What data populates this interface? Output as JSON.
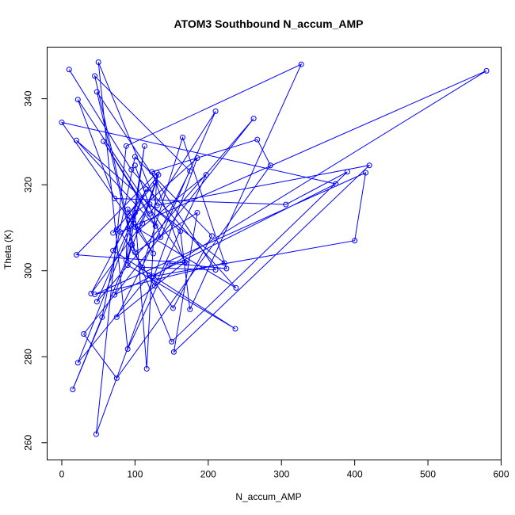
{
  "chart_data": {
    "type": "line",
    "title": "ATOM3 Southbound N_accum_AMP",
    "xlabel": "N_accum_AMP",
    "ylabel": "Theta (K)",
    "xlim": [
      -20,
      600
    ],
    "ylim": [
      256,
      352
    ],
    "xticks": [
      0,
      100,
      200,
      300,
      400,
      500,
      600
    ],
    "yticks": [
      260,
      280,
      300,
      320,
      340
    ],
    "grid": false,
    "marker": "open-circle",
    "color": "#0000ff",
    "points": [
      [
        10,
        346.8
      ],
      [
        95,
        323.5
      ],
      [
        238,
        296
      ],
      [
        100,
        310.2
      ],
      [
        120,
        315.5
      ],
      [
        222,
        301.8
      ],
      [
        45,
        294.5
      ],
      [
        415,
        322.8
      ],
      [
        400,
        307
      ],
      [
        125,
        298.7
      ],
      [
        580,
        346.5
      ],
      [
        80,
        309
      ],
      [
        127,
        296.5
      ],
      [
        197,
        322.3
      ],
      [
        105,
        309.5
      ],
      [
        15,
        272.4
      ],
      [
        55,
        289.2
      ],
      [
        100,
        326.5
      ],
      [
        205,
        308.1
      ],
      [
        152,
        291.3
      ],
      [
        120,
        299
      ],
      [
        22,
        278.6
      ],
      [
        115,
        319
      ],
      [
        48,
        292.8
      ],
      [
        262,
        335.4
      ],
      [
        30,
        285.3
      ],
      [
        75,
        275
      ],
      [
        285,
        324.5
      ],
      [
        267,
        330.5
      ],
      [
        123,
        323
      ],
      [
        168,
        302
      ],
      [
        75,
        289.2
      ],
      [
        175,
        323.2
      ],
      [
        45,
        345.3
      ],
      [
        100,
        304.3
      ],
      [
        185,
        313.5
      ],
      [
        153,
        281.1
      ],
      [
        420,
        324.5
      ],
      [
        130,
        315.2
      ],
      [
        50,
        348.5
      ],
      [
        90,
        281.8
      ],
      [
        145,
        301.8
      ],
      [
        225,
        300.5
      ],
      [
        165,
        331
      ],
      [
        110,
        300.8
      ],
      [
        210,
        300.2
      ],
      [
        48,
        341.6
      ],
      [
        96,
        306
      ],
      [
        150,
        283.5
      ],
      [
        390,
        323
      ],
      [
        306,
        315.4
      ],
      [
        72,
        316.8
      ],
      [
        22,
        339.8
      ],
      [
        170,
        301.8
      ],
      [
        20,
        303.7
      ],
      [
        130,
        322.8
      ],
      [
        116,
        277.2
      ],
      [
        100,
        313.5
      ],
      [
        70,
        304.7
      ],
      [
        237,
        286.5
      ],
      [
        90,
        301.3
      ],
      [
        113,
        329
      ],
      [
        88,
        302.4
      ],
      [
        90,
        314.3
      ],
      [
        125,
        304
      ],
      [
        0,
        334.5
      ],
      [
        374,
        320.2
      ],
      [
        72,
        294.4
      ],
      [
        128,
        320.5
      ],
      [
        70,
        308.8
      ],
      [
        75,
        309.6
      ],
      [
        132,
        322.3
      ],
      [
        110,
        311
      ],
      [
        40,
        294.7
      ],
      [
        95,
        312.5
      ],
      [
        185,
        326.2
      ],
      [
        47,
        262
      ],
      [
        88,
        329
      ],
      [
        327,
        348
      ],
      [
        175,
        291
      ],
      [
        162,
        309.2
      ],
      [
        20,
        330.3
      ],
      [
        128,
        310.4
      ],
      [
        57,
        330.1
      ],
      [
        120,
        313.2
      ],
      [
        210,
        337.1
      ],
      [
        135,
        307.8
      ],
      [
        100,
        324.5
      ]
    ]
  }
}
